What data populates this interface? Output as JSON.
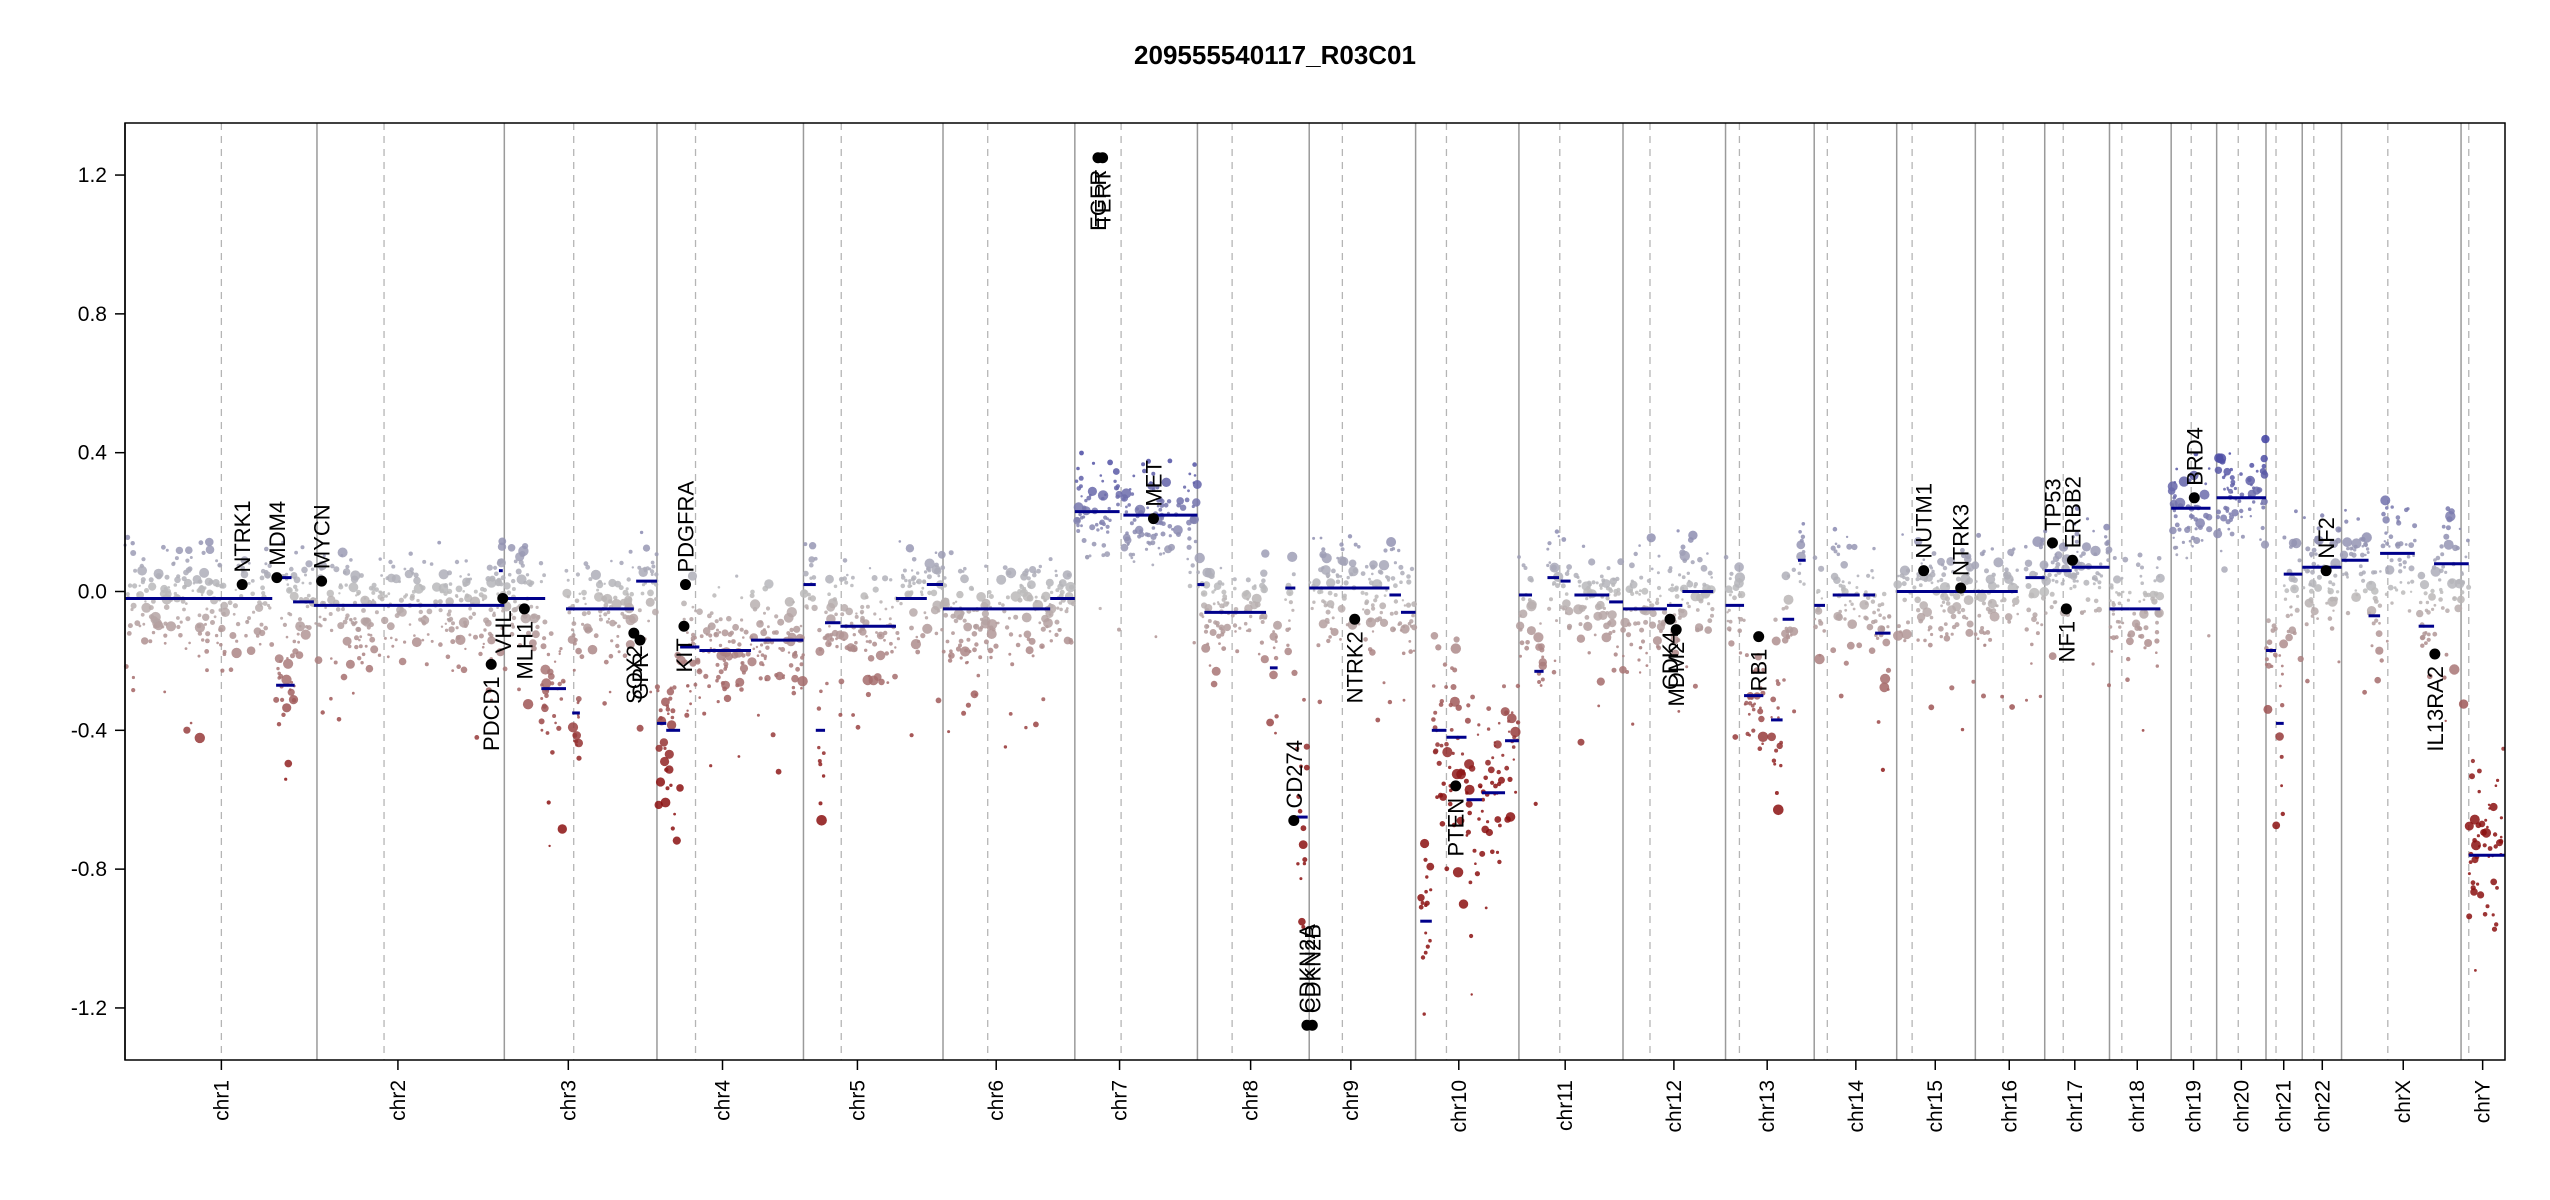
{
  "chart_data": {
    "type": "scatter",
    "title": "209555540117_R03C01",
    "ylim": [
      -1.35,
      1.35
    ],
    "yticks": [
      1.2,
      0.8,
      0.4,
      0.0,
      -0.4,
      -0.8,
      -1.2
    ],
    "ytick_labels": [
      "1.2",
      "0.8",
      "0.4",
      "0.0",
      "-0.4",
      "-0.8",
      "-1.2"
    ],
    "chromosomes": [
      {
        "name": "chr1",
        "start": 0,
        "end": 249,
        "center": 125
      },
      {
        "name": "chr2",
        "start": 249,
        "end": 492,
        "center": 354
      },
      {
        "name": "chr3",
        "start": 492,
        "end": 690,
        "center": 575
      },
      {
        "name": "chr4",
        "start": 690,
        "end": 880,
        "center": 775
      },
      {
        "name": "chr5",
        "start": 880,
        "end": 1061,
        "center": 950
      },
      {
        "name": "chr6",
        "start": 1061,
        "end": 1232,
        "center": 1130
      },
      {
        "name": "chr7",
        "start": 1232,
        "end": 1391,
        "center": 1290
      },
      {
        "name": "chr8",
        "start": 1391,
        "end": 1536,
        "center": 1460
      },
      {
        "name": "chr9",
        "start": 1536,
        "end": 1674,
        "center": 1590
      },
      {
        "name": "chr10",
        "start": 1674,
        "end": 1808,
        "center": 1730
      },
      {
        "name": "chr11",
        "start": 1808,
        "end": 1943,
        "center": 1868
      },
      {
        "name": "chr12",
        "start": 1943,
        "end": 2076,
        "center": 2009
      },
      {
        "name": "chr13",
        "start": 2076,
        "end": 2191,
        "center": 2130
      },
      {
        "name": "chr14",
        "start": 2191,
        "end": 2298,
        "center": 2245
      },
      {
        "name": "chr15",
        "start": 2298,
        "end": 2400,
        "center": 2348
      },
      {
        "name": "chr16",
        "start": 2400,
        "end": 2490,
        "center": 2444
      },
      {
        "name": "chr17",
        "start": 2490,
        "end": 2574,
        "center": 2529
      },
      {
        "name": "chr18",
        "start": 2574,
        "end": 2654,
        "center": 2610
      },
      {
        "name": "chr19",
        "start": 2654,
        "end": 2713,
        "center": 2683
      },
      {
        "name": "chr20",
        "start": 2713,
        "end": 2777,
        "center": 2745
      },
      {
        "name": "chr21",
        "start": 2777,
        "end": 2824,
        "center": 2800
      },
      {
        "name": "chr22",
        "start": 2824,
        "end": 2875,
        "center": 2850
      },
      {
        "name": "chrX",
        "start": 2875,
        "end": 3030,
        "center": 2955
      },
      {
        "name": "chrY",
        "start": 3030,
        "end": 3087,
        "center": 3058
      }
    ],
    "centromeres": [
      125,
      336,
      582,
      740,
      929,
      1119,
      1292,
      1436,
      1579,
      1714,
      1861,
      1978,
      2094,
      2208,
      2318,
      2436,
      2514,
      2590,
      2680,
      2741,
      2790,
      2839,
      2935,
      3040
    ],
    "segments": [
      {
        "x0": 0,
        "x1": 191,
        "y": -0.02
      },
      {
        "x0": 196,
        "x1": 220,
        "y": -0.27
      },
      {
        "x0": 203,
        "x1": 216,
        "y": 0.04
      },
      {
        "x0": 218,
        "x1": 245,
        "y": -0.03
      },
      {
        "x0": 245,
        "x1": 492,
        "y": -0.04
      },
      {
        "x0": 485,
        "x1": 490,
        "y": 0.06
      },
      {
        "x0": 492,
        "x1": 545,
        "y": -0.02
      },
      {
        "x0": 540,
        "x1": 572,
        "y": -0.28
      },
      {
        "x0": 572,
        "x1": 660,
        "y": -0.05
      },
      {
        "x0": 580,
        "x1": 590,
        "y": -0.35
      },
      {
        "x0": 663,
        "x1": 690,
        "y": 0.03
      },
      {
        "x0": 690,
        "x1": 702,
        "y": -0.38
      },
      {
        "x0": 702,
        "x1": 720,
        "y": -0.4
      },
      {
        "x0": 720,
        "x1": 745,
        "y": -0.16
      },
      {
        "x0": 745,
        "x1": 812,
        "y": -0.17
      },
      {
        "x0": 812,
        "x1": 880,
        "y": -0.14
      },
      {
        "x0": 880,
        "x1": 896,
        "y": 0.02
      },
      {
        "x0": 896,
        "x1": 908,
        "y": -0.4
      },
      {
        "x0": 908,
        "x1": 928,
        "y": -0.09
      },
      {
        "x0": 928,
        "x1": 1000,
        "y": -0.1
      },
      {
        "x0": 1000,
        "x1": 1040,
        "y": -0.02
      },
      {
        "x0": 1040,
        "x1": 1061,
        "y": 0.02
      },
      {
        "x0": 1061,
        "x1": 1200,
        "y": -0.05
      },
      {
        "x0": 1200,
        "x1": 1232,
        "y": -0.02
      },
      {
        "x0": 1232,
        "x1": 1290,
        "y": 0.23
      },
      {
        "x0": 1295,
        "x1": 1391,
        "y": 0.22
      },
      {
        "x0": 1391,
        "x1": 1400,
        "y": 0.02
      },
      {
        "x0": 1400,
        "x1": 1480,
        "y": -0.06
      },
      {
        "x0": 1485,
        "x1": 1495,
        "y": -0.22
      },
      {
        "x0": 1505,
        "x1": 1518,
        "y": 0.01
      },
      {
        "x0": 1520,
        "x1": 1534,
        "y": -0.65
      },
      {
        "x0": 1536,
        "x1": 1640,
        "y": 0.01
      },
      {
        "x0": 1640,
        "x1": 1655,
        "y": -0.01
      },
      {
        "x0": 1655,
        "x1": 1674,
        "y": -0.06
      },
      {
        "x0": 1680,
        "x1": 1695,
        "y": -0.95
      },
      {
        "x0": 1695,
        "x1": 1714,
        "y": -0.4
      },
      {
        "x0": 1714,
        "x1": 1740,
        "y": -0.42
      },
      {
        "x0": 1740,
        "x1": 1760,
        "y": -0.6
      },
      {
        "x0": 1760,
        "x1": 1790,
        "y": -0.58
      },
      {
        "x0": 1790,
        "x1": 1808,
        "y": -0.43
      },
      {
        "x0": 1808,
        "x1": 1825,
        "y": -0.01
      },
      {
        "x0": 1828,
        "x1": 1840,
        "y": -0.23
      },
      {
        "x0": 1845,
        "x1": 1860,
        "y": 0.04
      },
      {
        "x0": 1862,
        "x1": 1875,
        "y": 0.03
      },
      {
        "x0": 1880,
        "x1": 1925,
        "y": -0.01
      },
      {
        "x0": 1925,
        "x1": 1943,
        "y": -0.03
      },
      {
        "x0": 1943,
        "x1": 2000,
        "y": -0.05
      },
      {
        "x0": 2000,
        "x1": 2020,
        "y": -0.04
      },
      {
        "x0": 2020,
        "x1": 2060,
        "y": 0.0
      },
      {
        "x0": 2076,
        "x1": 2100,
        "y": -0.04
      },
      {
        "x0": 2100,
        "x1": 2125,
        "y": -0.3
      },
      {
        "x0": 2135,
        "x1": 2150,
        "y": -0.37
      },
      {
        "x0": 2150,
        "x1": 2165,
        "y": -0.08
      },
      {
        "x0": 2170,
        "x1": 2180,
        "y": 0.09
      },
      {
        "x0": 2191,
        "x1": 2205,
        "y": -0.04
      },
      {
        "x0": 2215,
        "x1": 2250,
        "y": -0.01
      },
      {
        "x0": 2255,
        "x1": 2270,
        "y": -0.01
      },
      {
        "x0": 2270,
        "x1": 2290,
        "y": -0.12
      },
      {
        "x0": 2298,
        "x1": 2360,
        "y": 0.0
      },
      {
        "x0": 2360,
        "x1": 2400,
        "y": 0.0
      },
      {
        "x0": 2400,
        "x1": 2455,
        "y": 0.0
      },
      {
        "x0": 2465,
        "x1": 2490,
        "y": 0.04
      },
      {
        "x0": 2490,
        "x1": 2525,
        "y": 0.06
      },
      {
        "x0": 2525,
        "x1": 2574,
        "y": 0.07
      },
      {
        "x0": 2574,
        "x1": 2600,
        "y": -0.05
      },
      {
        "x0": 2600,
        "x1": 2640,
        "y": -0.05
      },
      {
        "x0": 2654,
        "x1": 2705,
        "y": 0.24
      },
      {
        "x0": 2713,
        "x1": 2777,
        "y": 0.27
      },
      {
        "x0": 2777,
        "x1": 2790,
        "y": -0.17
      },
      {
        "x0": 2790,
        "x1": 2800,
        "y": -0.38
      },
      {
        "x0": 2800,
        "x1": 2824,
        "y": 0.05
      },
      {
        "x0": 2824,
        "x1": 2875,
        "y": 0.07
      },
      {
        "x0": 2875,
        "x1": 2910,
        "y": 0.09
      },
      {
        "x0": 2910,
        "x1": 2925,
        "y": -0.07
      },
      {
        "x0": 2925,
        "x1": 2970,
        "y": 0.11
      },
      {
        "x0": 2975,
        "x1": 2995,
        "y": -0.1
      },
      {
        "x0": 2995,
        "x1": 3040,
        "y": 0.08
      },
      {
        "x0": 3040,
        "x1": 3087,
        "y": -0.76
      }
    ],
    "genes": [
      {
        "name": "NTRK1",
        "x": 152,
        "y": 0.02,
        "label_side": "above"
      },
      {
        "name": "MDM4",
        "x": 197,
        "y": 0.04,
        "label_side": "above"
      },
      {
        "name": "MYCN",
        "x": 255,
        "y": 0.03,
        "label_side": "above"
      },
      {
        "name": "PDCD1",
        "x": 475,
        "y": -0.21,
        "label_side": "below"
      },
      {
        "name": "VHL",
        "x": 490,
        "y": -0.02,
        "label_side": "below"
      },
      {
        "name": "MLH1",
        "x": 518,
        "y": -0.05,
        "label_side": "below"
      },
      {
        "name": "SOX2",
        "x": 660,
        "y": -0.12,
        "label_side": "below"
      },
      {
        "name": "GPR",
        "x": 668,
        "y": -0.14,
        "label_side": "below"
      },
      {
        "name": "PDGFRA",
        "x": 727,
        "y": 0.02,
        "label_side": "above"
      },
      {
        "name": "KIT",
        "x": 725,
        "y": -0.1,
        "label_side": "below"
      },
      {
        "name": "EGFR",
        "x": 1262,
        "y": 1.25,
        "label_side": "below"
      },
      {
        "name": "TERT",
        "x": 1268,
        "y": 1.25,
        "label_side": "below"
      },
      {
        "name": "MET",
        "x": 1334,
        "y": 0.21,
        "label_side": "above"
      },
      {
        "name": "CD274",
        "x": 1516,
        "y": -0.66,
        "label_side": "above"
      },
      {
        "name": "CDKN2A",
        "x": 1533,
        "y": -1.25,
        "label_side": "above"
      },
      {
        "name": "CDKN2B",
        "x": 1540,
        "y": -1.25,
        "label_side": "above"
      },
      {
        "name": "NTRK2",
        "x": 1595,
        "y": -0.08,
        "label_side": "below"
      },
      {
        "name": "PTEN",
        "x": 1726,
        "y": -0.56,
        "label_side": "below"
      },
      {
        "name": "CDK4",
        "x": 2004,
        "y": -0.08,
        "label_side": "below"
      },
      {
        "name": "MDM2",
        "x": 2012,
        "y": -0.11,
        "label_side": "below"
      },
      {
        "name": "RB1",
        "x": 2119,
        "y": -0.13,
        "label_side": "below"
      },
      {
        "name": "NUTM1",
        "x": 2333,
        "y": 0.06,
        "label_side": "above"
      },
      {
        "name": "NTRK3",
        "x": 2381,
        "y": 0.01,
        "label_side": "above"
      },
      {
        "name": "TP53",
        "x": 2500,
        "y": 0.14,
        "label_side": "above"
      },
      {
        "name": "ERBB2",
        "x": 2526,
        "y": 0.09,
        "label_side": "above"
      },
      {
        "name": "NF1",
        "x": 2518,
        "y": -0.05,
        "label_side": "below"
      },
      {
        "name": "BRD4",
        "x": 2684,
        "y": 0.27,
        "label_side": "above"
      },
      {
        "name": "NF2",
        "x": 2855,
        "y": 0.06,
        "label_side": "above"
      },
      {
        "name": "IL13RA2",
        "x": 2996,
        "y": -0.18,
        "label_side": "below"
      }
    ],
    "point_color_high": "#3b3ba0",
    "point_color_mid": "#bcbcbc",
    "point_color_low": "#8b1010",
    "segment_color": "#00008b",
    "gene_point_color": "#000000"
  }
}
